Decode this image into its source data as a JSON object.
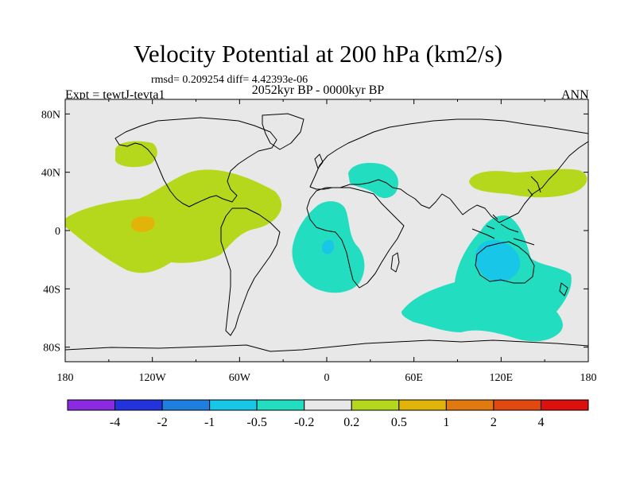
{
  "title": "Velocity Potential at 200 hPa (km2/s)",
  "stats": "rmsd= 0.209254  diff= 4.42393e-06",
  "experiment": "Expt = tewtJ-tevta1",
  "period": "2052kyr BP - 0000kyr BP",
  "season": "ANN",
  "map": {
    "lat_ticks": [
      "80N",
      "40N",
      "0",
      "40S",
      "80S"
    ],
    "lat_values": [
      80,
      40,
      0,
      -40,
      -80
    ],
    "lon_ticks": [
      "180",
      "120W",
      "60W",
      "0",
      "60E",
      "120E",
      "180"
    ],
    "lon_values": [
      -180,
      -120,
      -60,
      0,
      60,
      120,
      180
    ],
    "background_color": "#e8e8e8"
  },
  "colorbar": {
    "colors": [
      "#8a2be2",
      "#2233dd",
      "#1e7fe0",
      "#18c6e8",
      "#22ddc0",
      "#e8e8e8",
      "#b5d81c",
      "#e2b40a",
      "#e07a10",
      "#e04a10",
      "#dd1010"
    ],
    "labels": [
      "-4",
      "-2",
      "-1",
      "-0.5",
      "-0.2",
      "0.2",
      "0.5",
      "1",
      "2",
      "4"
    ]
  }
}
